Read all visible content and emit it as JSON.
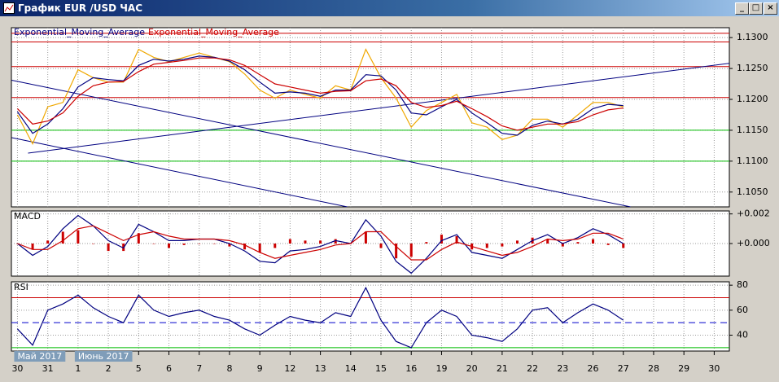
{
  "window": {
    "title": "График EUR /USD ЧАС"
  },
  "chart_data": [
    {
      "type": "line",
      "legend": true,
      "color_frame": "#000000",
      "x": [
        0,
        0.5,
        1,
        1.5,
        2,
        2.5,
        3,
        3.5,
        4,
        4.5,
        5,
        5.5,
        6,
        6.5,
        7,
        7.5,
        8,
        8.5,
        9,
        9.5,
        10,
        10.5,
        11,
        11.5,
        12,
        12.5,
        13,
        13.5,
        14,
        14.5,
        15,
        15.5,
        16,
        16.5,
        17,
        17.5,
        18,
        18.5,
        19,
        19.5,
        20
      ],
      "xlim": [
        -0.2,
        23.5
      ],
      "ylim": [
        1.1026,
        1.1316
      ],
      "yticks": [
        {
          "value": 1.13,
          "label": "1.1300"
        },
        {
          "value": 1.125,
          "label": "1.1250"
        },
        {
          "value": 1.12,
          "label": "1.1200"
        },
        {
          "value": 1.115,
          "label": "1.1150"
        },
        {
          "value": 1.11,
          "label": "1.1100"
        },
        {
          "value": 1.105,
          "label": "1.1050"
        }
      ],
      "grid": true,
      "hlines": [
        {
          "value": 1.1307,
          "color": "#cc0000"
        },
        {
          "value": 1.1293,
          "color": "#cc0000"
        },
        {
          "value": 1.1253,
          "color": "#cc0000"
        },
        {
          "value": 1.1203,
          "color": "#cc0000"
        },
        {
          "value": 1.115,
          "color": "#00bb00"
        },
        {
          "value": 1.11,
          "color": "#00bb00"
        }
      ],
      "trendlines": [
        {
          "x": [
            -0.19,
            20.24
          ],
          "y": [
            1.1231,
            1.1026
          ],
          "color": "#000080"
        },
        {
          "x": [
            -0.19,
            10.89
          ],
          "y": [
            1.1138,
            1.1026
          ],
          "color": "#000080"
        },
        {
          "x": [
            0.35,
            23.6
          ],
          "y": [
            1.1113,
            1.1259
          ],
          "color": "#000080"
        }
      ],
      "series": [
        {
          "color": "#f0a800",
          "values": [
            1.1175,
            1.1128,
            1.1188,
            1.1195,
            1.1248,
            1.1235,
            1.1228,
            1.1228,
            1.1281,
            1.1268,
            1.1261,
            1.1268,
            1.1275,
            1.1268,
            1.1261,
            1.1241,
            1.1215,
            1.1202,
            1.1215,
            1.1208,
            1.1202,
            1.1222,
            1.1215,
            1.1281,
            1.1235,
            1.1202,
            1.1155,
            1.1182,
            1.1195,
            1.1208,
            1.1162,
            1.1155,
            1.1135,
            1.1142,
            1.1168,
            1.1168,
            1.1155,
            1.1175,
            1.1195,
            1.1195,
            1.1188
          ]
        },
        {
          "name": "Exponential_Moving_Average",
          "color": "#000080",
          "values": [
            1.118,
            1.1145,
            1.116,
            1.1185,
            1.122,
            1.1235,
            1.1232,
            1.123,
            1.1255,
            1.1265,
            1.1262,
            1.1265,
            1.127,
            1.1268,
            1.1262,
            1.1248,
            1.1228,
            1.121,
            1.1212,
            1.121,
            1.1205,
            1.1215,
            1.1215,
            1.124,
            1.1238,
            1.1215,
            1.1178,
            1.1175,
            1.1188,
            1.12,
            1.1178,
            1.1162,
            1.1145,
            1.1142,
            1.1158,
            1.1165,
            1.116,
            1.1168,
            1.1185,
            1.1192,
            1.119
          ]
        },
        {
          "name": "Exponential_Moving_Average",
          "color": "#cc0000",
          "values": [
            1.1185,
            1.116,
            1.1165,
            1.1178,
            1.1205,
            1.1222,
            1.1228,
            1.1229,
            1.1245,
            1.1257,
            1.126,
            1.1263,
            1.1267,
            1.1267,
            1.1264,
            1.1255,
            1.124,
            1.1225,
            1.122,
            1.1215,
            1.121,
            1.1213,
            1.1214,
            1.123,
            1.1233,
            1.1222,
            1.1195,
            1.1187,
            1.119,
            1.1197,
            1.1185,
            1.1172,
            1.1157,
            1.115,
            1.1155,
            1.116,
            1.116,
            1.1164,
            1.1175,
            1.1183,
            1.1186
          ]
        }
      ]
    },
    {
      "type": "line",
      "title": "MACD",
      "x": [
        0,
        0.5,
        1,
        1.5,
        2,
        2.5,
        3,
        3.5,
        4,
        4.5,
        5,
        5.5,
        6,
        6.5,
        7,
        7.5,
        8,
        8.5,
        9,
        9.5,
        10,
        10.5,
        11,
        11.5,
        12,
        12.5,
        13,
        13.5,
        14,
        14.5,
        15,
        15.5,
        16,
        16.5,
        17,
        17.5,
        18,
        18.5,
        19,
        19.5,
        20
      ],
      "xlim": [
        -0.2,
        23.5
      ],
      "ylim": [
        -0.0022,
        0.0022
      ],
      "yticks": [
        {
          "value": 0.002,
          "label": "+0.002"
        },
        {
          "value": 0,
          "label": "+0.000"
        }
      ],
      "grid": true,
      "series": [
        {
          "type": "bar",
          "color": "#cc0000",
          "values": [
            0,
            -0.0004,
            0.0002,
            0.0008,
            0.0009,
            0,
            -0.0005,
            -0.0005,
            0.0007,
            0,
            -0.0003,
            -0.0001,
            0,
            0,
            -0.0002,
            -0.0004,
            -0.0006,
            -0.0003,
            0.0003,
            0.0002,
            0.0002,
            0.0003,
            0,
            0.0008,
            -0.0003,
            -0.001,
            -0.0009,
            0.0001,
            0.0006,
            0.0005,
            -0.0004,
            -0.0003,
            -0.0002,
            0.0002,
            0.0004,
            0.0003,
            -0.0002,
            0.0001,
            0.0003,
            -0.0001,
            -0.0003
          ]
        },
        {
          "color": "#000080",
          "values": [
            0,
            -0.0008,
            -0.0002,
            0.001,
            0.0019,
            0.0012,
            0.0002,
            -0.0003,
            0.0013,
            0.0008,
            0.0002,
            0.0002,
            0.0003,
            0.0003,
            0,
            -0.0005,
            -0.0012,
            -0.0013,
            -0.0005,
            -0.0004,
            -0.0002,
            0.0002,
            0,
            0.0016,
            0.0005,
            -0.0012,
            -0.002,
            -0.001,
            0.0002,
            0.0006,
            -0.0006,
            -0.0008,
            -0.001,
            -0.0004,
            0.0002,
            0.0006,
            0,
            0.0004,
            0.001,
            0.0006,
            0
          ]
        },
        {
          "color": "#cc0000",
          "values": [
            0,
            -0.0004,
            -0.0004,
            0.0002,
            0.001,
            0.0012,
            0.0007,
            0.0002,
            0.0006,
            0.0008,
            0.0005,
            0.0003,
            0.0003,
            0.0003,
            0.0002,
            -0.0001,
            -0.0006,
            -0.001,
            -0.0008,
            -0.0006,
            -0.0004,
            -0.0001,
            0,
            0.0008,
            0.0008,
            -0.0002,
            -0.0011,
            -0.0011,
            -0.0004,
            0.0001,
            -0.0002,
            -0.0005,
            -0.0008,
            -0.0006,
            -0.0002,
            0.0003,
            0.0002,
            0.0003,
            0.0007,
            0.0007,
            0.0003
          ]
        }
      ]
    },
    {
      "type": "line",
      "title": "RSI",
      "x": [
        0,
        0.5,
        1,
        1.5,
        2,
        2.5,
        3,
        3.5,
        4,
        4.5,
        5,
        5.5,
        6,
        6.5,
        7,
        7.5,
        8,
        8.5,
        9,
        9.5,
        10,
        10.5,
        11,
        11.5,
        12,
        12.5,
        13,
        13.5,
        14,
        14.5,
        15,
        15.5,
        16,
        16.5,
        17,
        17.5,
        18,
        18.5,
        19,
        19.5,
        20
      ],
      "xlim": [
        -0.2,
        23.5
      ],
      "xticks": [
        {
          "value": 0,
          "label": "30"
        },
        {
          "value": 1,
          "label": "31"
        },
        {
          "value": 2,
          "label": "1"
        },
        {
          "value": 3,
          "label": "2"
        },
        {
          "value": 4,
          "label": "5"
        },
        {
          "value": 5,
          "label": "6"
        },
        {
          "value": 6,
          "label": "7"
        },
        {
          "value": 7,
          "label": "8"
        },
        {
          "value": 8,
          "label": "9"
        },
        {
          "value": 9,
          "label": "12"
        },
        {
          "value": 10,
          "label": "13"
        },
        {
          "value": 11,
          "label": "14"
        },
        {
          "value": 12,
          "label": "15"
        },
        {
          "value": 13,
          "label": "16"
        },
        {
          "value": 14,
          "label": "19"
        },
        {
          "value": 15,
          "label": "20"
        },
        {
          "value": 16,
          "label": "21"
        },
        {
          "value": 17,
          "label": "22"
        },
        {
          "value": 18,
          "label": "23"
        },
        {
          "value": 19,
          "label": "26"
        },
        {
          "value": 20,
          "label": "27"
        },
        {
          "value": 21,
          "label": "28"
        },
        {
          "value": 22,
          "label": "29"
        },
        {
          "value": 23,
          "label": "30"
        }
      ],
      "month_labels": [
        {
          "value": 0,
          "label": "Май 2017"
        },
        {
          "value": 2,
          "label": "Июнь 2017"
        }
      ],
      "ylim": [
        27.3,
        82.7
      ],
      "yticks": [
        80,
        60,
        40
      ],
      "grid": true,
      "levels": [
        {
          "value": 70,
          "color": "#cc0000"
        },
        {
          "value": 50,
          "color": "#0000cc",
          "dashed": true
        },
        {
          "value": 30,
          "color": "#00bb00"
        }
      ],
      "series": [
        {
          "color": "#000080",
          "values": [
            45,
            32,
            60,
            65,
            72,
            62,
            55,
            50,
            72,
            60,
            55,
            58,
            60,
            55,
            52,
            45,
            40,
            48,
            55,
            52,
            50,
            58,
            55,
            78,
            52,
            35,
            30,
            50,
            60,
            55,
            40,
            38,
            35,
            45,
            60,
            62,
            50,
            58,
            65,
            60,
            52
          ]
        }
      ]
    }
  ]
}
